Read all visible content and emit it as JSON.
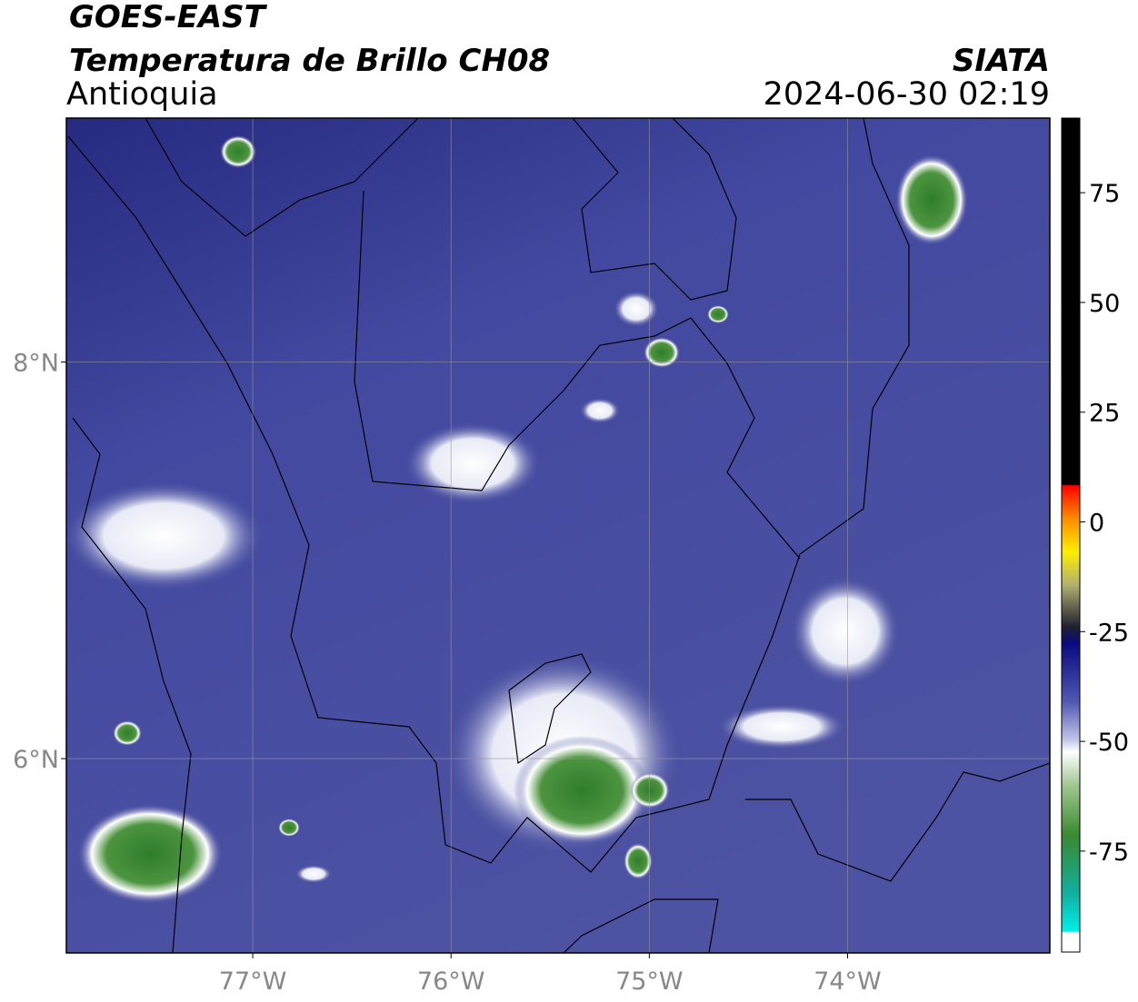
{
  "header": {
    "satellite": "GOES-EAST",
    "product": "Temperatura de Brillo CH08",
    "region": "Antioquia",
    "source": "SIATA",
    "timestamp": "2024-06-30 02:19"
  },
  "map": {
    "xlim": [
      -77.94,
      -72.98
    ],
    "ylim": [
      5.02,
      9.23
    ],
    "xticks": [
      {
        "value": -77,
        "label": "77°W"
      },
      {
        "value": -76,
        "label": "76°W"
      },
      {
        "value": -75,
        "label": "75°W"
      },
      {
        "value": -74,
        "label": "74°W"
      }
    ],
    "yticks": [
      {
        "value": 8,
        "label": "8°N"
      },
      {
        "value": 6,
        "label": "6°N"
      }
    ],
    "grid": true
  },
  "colorbar": {
    "lim": [
      -98,
      92
    ],
    "ticks": [
      75,
      50,
      25,
      0,
      -25,
      -50,
      -75
    ]
  }
}
